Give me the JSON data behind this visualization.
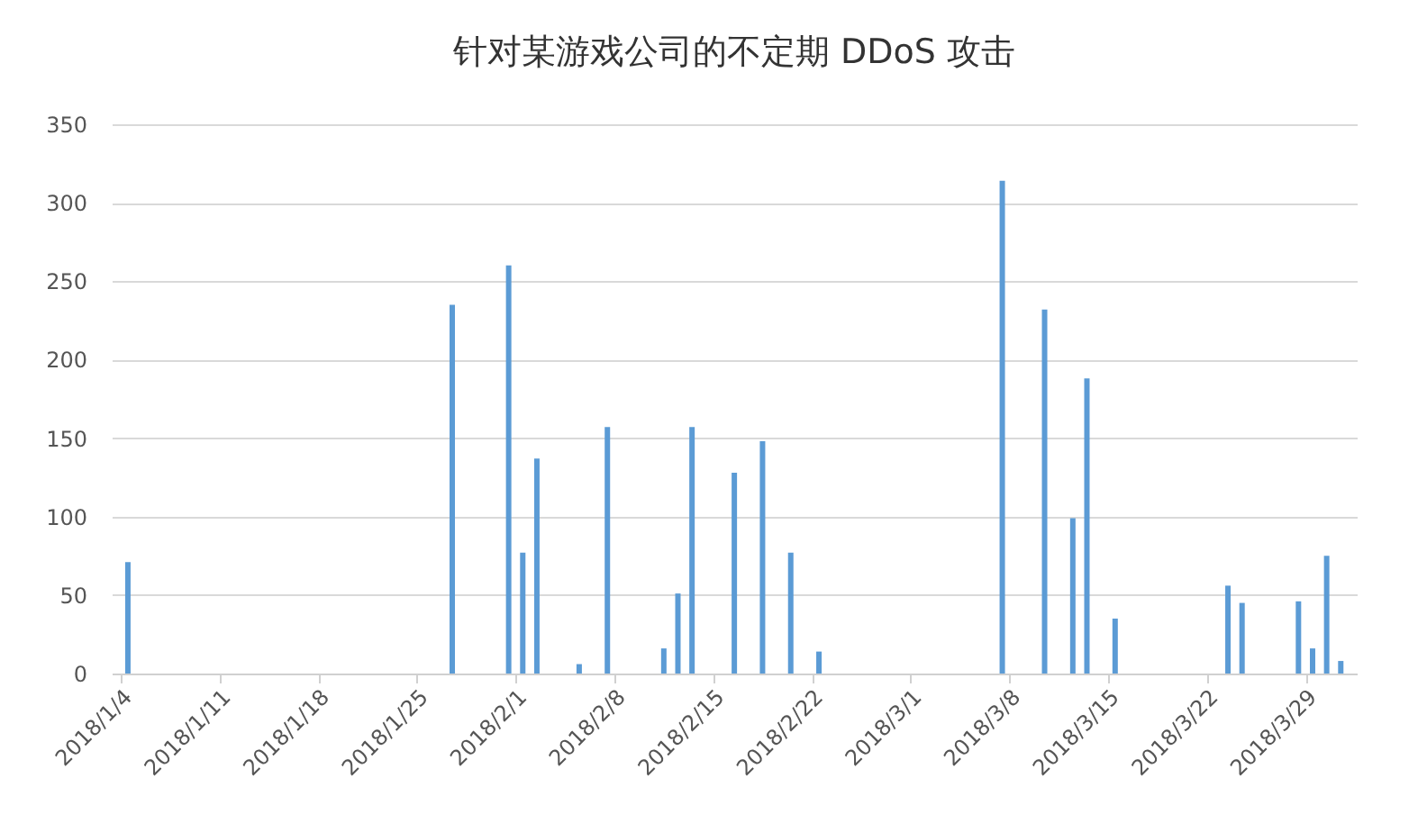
{
  "chart_data": {
    "type": "bar",
    "title": "针对某游戏公司的不定期 DDoS 攻击",
    "x": [
      "2018-01-04",
      "2018-01-27",
      "2018-01-31",
      "2018-02-01",
      "2018-02-02",
      "2018-02-05",
      "2018-02-07",
      "2018-02-11",
      "2018-02-12",
      "2018-02-13",
      "2018-02-16",
      "2018-02-18",
      "2018-02-20",
      "2018-02-22",
      "2018-03-07",
      "2018-03-10",
      "2018-03-12",
      "2018-03-13",
      "2018-03-15",
      "2018-03-23",
      "2018-03-24",
      "2018-03-28",
      "2018-03-29",
      "2018-03-30",
      "2018-03-31"
    ],
    "values": [
      71,
      235,
      260,
      77,
      137,
      6,
      157,
      16,
      51,
      157,
      128,
      148,
      77,
      14,
      314,
      232,
      99,
      188,
      35,
      56,
      45,
      46,
      16,
      75,
      8
    ],
    "color": "#5b9bd5",
    "xlim": [
      "2018-01-04",
      "2018-04-01"
    ],
    "xticks": [
      {
        "value": "2018-01-04",
        "label": "2018/1/4"
      },
      {
        "value": "2018-01-11",
        "label": "2018/1/11"
      },
      {
        "value": "2018-01-18",
        "label": "2018/1/18"
      },
      {
        "value": "2018-01-25",
        "label": "2018/1/25"
      },
      {
        "value": "2018-02-01",
        "label": "2018/2/1"
      },
      {
        "value": "2018-02-08",
        "label": "2018/2/8"
      },
      {
        "value": "2018-02-15",
        "label": "2018/2/15"
      },
      {
        "value": "2018-02-22",
        "label": "2018/2/22"
      },
      {
        "value": "2018-03-01",
        "label": "2018/3/1"
      },
      {
        "value": "2018-03-08",
        "label": "2018/3/8"
      },
      {
        "value": "2018-03-15",
        "label": "2018/3/15"
      },
      {
        "value": "2018-03-22",
        "label": "2018/3/22"
      },
      {
        "value": "2018-03-29",
        "label": "2018/3/29"
      }
    ],
    "ylim": [
      0,
      350
    ],
    "yticks": [
      0,
      50,
      100,
      150,
      200,
      250,
      300,
      350
    ],
    "grid": "y"
  }
}
